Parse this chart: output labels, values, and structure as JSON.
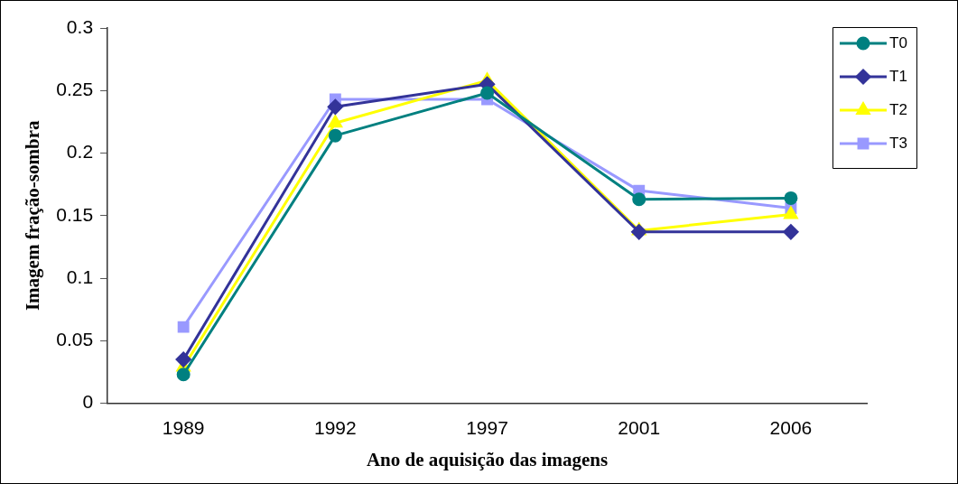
{
  "chart_data": {
    "type": "line",
    "xlabel": "Ano de aquisição das imagens",
    "ylabel": "Imagem fração-sombra",
    "categories": [
      "1989",
      "1992",
      "1997",
      "2001",
      "2006"
    ],
    "series": [
      {
        "name": "T0",
        "color": "#008080",
        "marker": "circle",
        "values": [
          0.023,
          0.214,
          0.248,
          0.163,
          0.164
        ]
      },
      {
        "name": "T1",
        "color": "#333399",
        "marker": "diamond",
        "values": [
          0.035,
          0.237,
          0.255,
          0.137,
          0.137
        ]
      },
      {
        "name": "T2",
        "color": "#ffff00",
        "marker": "triangle",
        "values": [
          0.029,
          0.224,
          0.258,
          0.138,
          0.151
        ]
      },
      {
        "name": "T3",
        "color": "#9999ff",
        "marker": "square",
        "values": [
          0.061,
          0.243,
          0.243,
          0.17,
          0.156
        ]
      }
    ],
    "ylim": [
      0,
      0.3
    ],
    "yticks": [
      0,
      0.05,
      0.1,
      0.15,
      0.2,
      0.25,
      0.3
    ],
    "grid": false,
    "legend": "top right"
  }
}
